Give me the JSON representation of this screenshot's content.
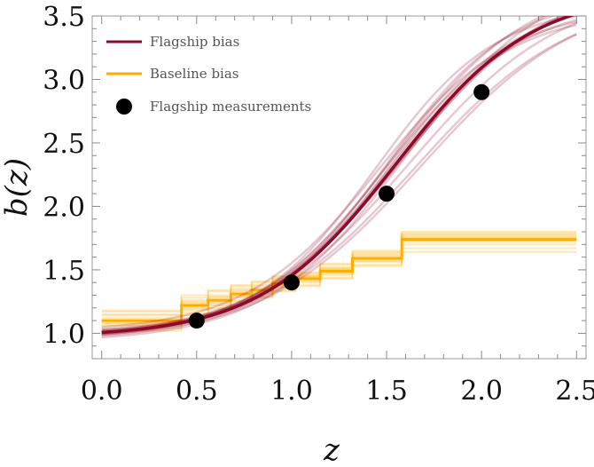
{
  "chart_data": {
    "type": "line",
    "title": "",
    "xlabel": "z",
    "ylabel": "b(z)",
    "xlim": [
      -0.05,
      2.55
    ],
    "ylim": [
      0.8,
      3.5
    ],
    "xticks": [
      0.0,
      0.5,
      1.0,
      1.5,
      2.0,
      2.5
    ],
    "xtick_labels": [
      "0.0",
      "0.5",
      "1.0",
      "1.5",
      "2.0",
      "2.5"
    ],
    "yticks": [
      1.0,
      1.5,
      2.0,
      2.5,
      3.0,
      3.5
    ],
    "ytick_labels": [
      "1.0",
      "1.5",
      "2.0",
      "2.5",
      "3.0",
      "3.5"
    ],
    "legend_position": "top-left",
    "legend": [
      "Flagship bias",
      "Baseline bias",
      "Flagship measurements"
    ],
    "colors": {
      "flagship": "#8b0a2a",
      "baseline": "#ffad00",
      "measurements": "#000000"
    },
    "series": [
      {
        "name": "Flagship bias",
        "kind": "sigmoid-curve",
        "function": "b(z) = b0 + (binf - b0) / (1 + exp(-(z - zc) / w))",
        "central": {
          "b0": 0.97,
          "binf": 3.7,
          "zc": 1.55,
          "w": 0.36
        },
        "realizations": [
          {
            "b0": 0.95,
            "binf": 3.75,
            "zc": 1.57,
            "w": 0.38
          },
          {
            "b0": 0.99,
            "binf": 3.62,
            "zc": 1.52,
            "w": 0.35
          },
          {
            "b0": 0.93,
            "binf": 3.85,
            "zc": 1.6,
            "w": 0.37
          },
          {
            "b0": 1.0,
            "binf": 3.55,
            "zc": 1.48,
            "w": 0.34
          },
          {
            "b0": 0.96,
            "binf": 3.72,
            "zc": 1.62,
            "w": 0.4
          },
          {
            "b0": 0.98,
            "binf": 3.68,
            "zc": 1.5,
            "w": 0.33
          },
          {
            "b0": 0.94,
            "binf": 3.8,
            "zc": 1.58,
            "w": 0.39
          },
          {
            "b0": 1.01,
            "binf": 3.58,
            "zc": 1.46,
            "w": 0.35
          },
          {
            "b0": 0.95,
            "binf": 3.66,
            "zc": 1.65,
            "w": 0.41
          },
          {
            "b0": 0.97,
            "binf": 3.78,
            "zc": 1.53,
            "w": 0.36
          },
          {
            "b0": 0.99,
            "binf": 3.6,
            "zc": 1.44,
            "w": 0.32
          },
          {
            "b0": 0.93,
            "binf": 3.7,
            "zc": 1.68,
            "w": 0.42
          },
          {
            "b0": 0.98,
            "binf": 3.74,
            "zc": 1.56,
            "w": 0.37
          },
          {
            "b0": 0.96,
            "binf": 3.64,
            "zc": 1.51,
            "w": 0.34
          }
        ]
      },
      {
        "name": "Baseline bias",
        "kind": "step",
        "z_edges": [
          0.0,
          0.42,
          0.56,
          0.68,
          0.79,
          0.9,
          1.02,
          1.15,
          1.32,
          1.58,
          2.5
        ],
        "central": [
          1.1,
          1.22,
          1.26,
          1.31,
          1.34,
          1.39,
          1.43,
          1.49,
          1.59,
          1.74
        ],
        "realizations": [
          [
            1.06,
            1.18,
            1.22,
            1.28,
            1.31,
            1.36,
            1.4,
            1.46,
            1.56,
            1.7
          ],
          [
            1.14,
            1.26,
            1.3,
            1.35,
            1.38,
            1.43,
            1.46,
            1.52,
            1.63,
            1.78
          ],
          [
            1.08,
            1.2,
            1.24,
            1.3,
            1.33,
            1.37,
            1.41,
            1.47,
            1.57,
            1.72
          ],
          [
            1.12,
            1.25,
            1.29,
            1.33,
            1.36,
            1.41,
            1.45,
            1.51,
            1.61,
            1.76
          ],
          [
            1.04,
            1.16,
            1.2,
            1.26,
            1.29,
            1.34,
            1.38,
            1.44,
            1.54,
            1.67
          ],
          [
            1.17,
            1.28,
            1.33,
            1.37,
            1.4,
            1.45,
            1.48,
            1.54,
            1.65,
            1.8
          ],
          [
            1.1,
            1.21,
            1.25,
            1.32,
            1.35,
            1.4,
            1.44,
            1.5,
            1.6,
            1.75
          ],
          [
            1.07,
            1.19,
            1.23,
            1.29,
            1.32,
            1.38,
            1.42,
            1.48,
            1.58,
            1.73
          ],
          [
            1.15,
            1.24,
            1.28,
            1.34,
            1.37,
            1.42,
            1.45,
            1.51,
            1.62,
            1.77
          ],
          [
            1.02,
            1.14,
            1.19,
            1.25,
            1.28,
            1.33,
            1.37,
            1.43,
            1.53,
            1.64
          ],
          [
            1.18,
            1.3,
            1.34,
            1.38,
            1.41,
            1.44,
            1.47,
            1.55,
            1.64,
            1.79
          ],
          [
            1.09,
            1.23,
            1.27,
            1.31,
            1.34,
            1.39,
            1.43,
            1.49,
            1.59,
            1.74
          ]
        ]
      },
      {
        "name": "Flagship measurements",
        "kind": "scatter",
        "x": [
          0.5,
          1.0,
          1.5,
          2.0
        ],
        "y": [
          1.1,
          1.4,
          2.1,
          2.9
        ]
      }
    ]
  }
}
